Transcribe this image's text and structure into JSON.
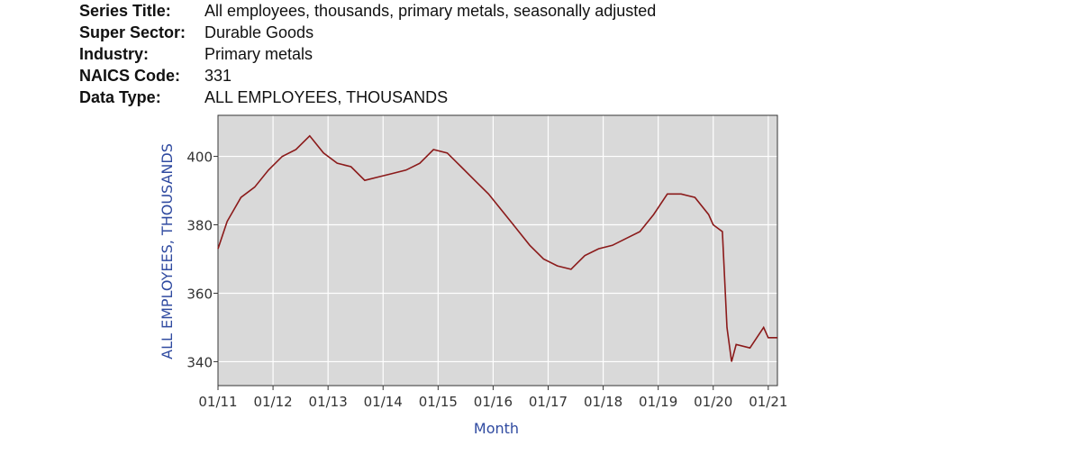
{
  "meta": {
    "series_title_label": "Series Title:",
    "series_title_value": "All employees, thousands, primary metals, seasonally adjusted",
    "super_sector_label": "Super Sector:",
    "super_sector_value": "Durable Goods",
    "industry_label": "Industry:",
    "industry_value": "Primary metals",
    "naics_label": "NAICS Code:",
    "naics_value": "331",
    "data_type_label": "Data Type:",
    "data_type_value": "ALL EMPLOYEES, THOUSANDS"
  },
  "colors": {
    "plot_bg": "#d9d9d9",
    "line": "#8b1a1a",
    "grid": "#ffffff",
    "axis_title": "#2f4aa0"
  },
  "chart_data": {
    "type": "line",
    "title": "",
    "xlabel": "Month",
    "ylabel": "ALL EMPLOYEES, THOUSANDS",
    "grid": true,
    "ylim": [
      333,
      412
    ],
    "xlim": [
      "2011-01",
      "2021-03"
    ],
    "x_ticks": [
      "01/11",
      "01/12",
      "01/13",
      "01/14",
      "01/15",
      "01/16",
      "01/17",
      "01/18",
      "01/19",
      "01/20",
      "01/21"
    ],
    "y_ticks": [
      "340",
      "360",
      "380",
      "400"
    ],
    "series": [
      {
        "x": [
          "2011-01",
          "2011-03",
          "2011-06",
          "2011-09",
          "2011-12",
          "2012-03",
          "2012-06",
          "2012-09",
          "2012-12",
          "2013-03",
          "2013-06",
          "2013-09",
          "2013-12",
          "2014-03",
          "2014-06",
          "2014-09",
          "2014-12",
          "2015-03",
          "2015-06",
          "2015-09",
          "2015-12",
          "2016-03",
          "2016-06",
          "2016-09",
          "2016-12",
          "2017-03",
          "2017-06",
          "2017-09",
          "2017-12",
          "2018-03",
          "2018-06",
          "2018-09",
          "2018-12",
          "2019-03",
          "2019-06",
          "2019-09",
          "2019-12",
          "2020-01",
          "2020-03",
          "2020-04",
          "2020-05",
          "2020-06",
          "2020-09",
          "2020-12",
          "2021-01",
          "2021-03"
        ],
        "values": [
          373,
          381,
          388,
          391,
          396,
          400,
          402,
          406,
          401,
          398,
          397,
          393,
          394,
          395,
          396,
          398,
          402,
          401,
          397,
          393,
          389,
          384,
          379,
          374,
          370,
          368,
          367,
          371,
          373,
          374,
          376,
          378,
          383,
          389,
          389,
          388,
          383,
          380,
          378,
          350,
          340,
          345,
          344,
          350,
          347,
          347
        ]
      }
    ]
  }
}
